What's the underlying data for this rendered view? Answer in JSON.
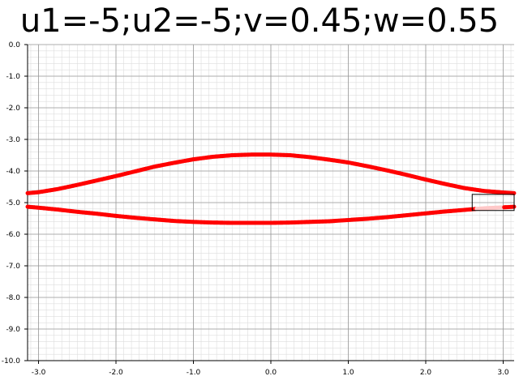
{
  "chart_data": {
    "type": "scatter",
    "title": "u1=-5;u2=-5;v=0.45;w=0.55",
    "xlabel": "",
    "ylabel": "",
    "xlim": [
      -3.14159,
      3.14159
    ],
    "ylim": [
      -10.0,
      0.0
    ],
    "x_ticks": [
      -3.0,
      -2.0,
      -1.0,
      0.0,
      1.0,
      2.0,
      3.0
    ],
    "x_tick_labels": [
      "-3.0",
      "-2.0",
      "-1.0",
      "0.0",
      "1.0",
      "2.0",
      "3.0"
    ],
    "y_ticks": [
      0.0,
      -1.0,
      -2.0,
      -3.0,
      -4.0,
      -5.0,
      -6.0,
      -7.0,
      -8.0,
      -9.0,
      -10.0
    ],
    "y_tick_labels": [
      "0.0",
      "-1.0",
      "-2.0",
      "-3.0",
      "-4.0",
      "-5.0",
      "-6.0",
      "-7.0",
      "-8.0",
      "-9.0",
      "-10.0"
    ],
    "grid": true,
    "colors": {
      "curve": "#ff0000",
      "fade": "#ffc8c8",
      "grid_major": "#999999",
      "grid_minor": "#dddddd"
    },
    "series": [
      {
        "x": [
          -3.14,
          -3.0,
          -2.75,
          -2.5,
          -2.25,
          -2.0,
          -1.75,
          -1.5,
          -1.25,
          -1.0,
          -0.75,
          -0.5,
          -0.25,
          0.0,
          0.25,
          0.5,
          0.75,
          1.0,
          1.25,
          1.5,
          1.75,
          2.0,
          2.25,
          2.5,
          2.75,
          3.0,
          3.14
        ],
        "values": [
          -4.7,
          -4.67,
          -4.57,
          -4.44,
          -4.3,
          -4.16,
          -4.01,
          -3.86,
          -3.74,
          -3.63,
          -3.55,
          -3.5,
          -3.48,
          -3.48,
          -3.5,
          -3.56,
          -3.64,
          -3.73,
          -3.85,
          -3.98,
          -4.12,
          -4.27,
          -4.41,
          -4.54,
          -4.63,
          -4.68,
          -4.7
        ]
      },
      {
        "x": [
          -3.14,
          -3.0,
          -2.75,
          -2.5,
          -2.25,
          -2.0,
          -1.75,
          -1.5,
          -1.25,
          -1.0,
          -0.75,
          -0.5,
          -0.25,
          0.0,
          0.25,
          0.5,
          0.75,
          1.0,
          1.25,
          1.5,
          1.75,
          2.0,
          2.25,
          2.5,
          2.75,
          3.0,
          3.14
        ],
        "values": [
          -5.13,
          -5.16,
          -5.22,
          -5.29,
          -5.35,
          -5.42,
          -5.48,
          -5.53,
          -5.58,
          -5.61,
          -5.63,
          -5.64,
          -5.64,
          -5.64,
          -5.63,
          -5.61,
          -5.59,
          -5.55,
          -5.51,
          -5.46,
          -5.4,
          -5.34,
          -5.28,
          -5.23,
          -5.18,
          -5.15,
          -5.13
        ]
      }
    ],
    "highlight_box": {
      "x": [
        2.6,
        3.14159
      ],
      "y": [
        -4.74,
        -5.25
      ]
    }
  }
}
